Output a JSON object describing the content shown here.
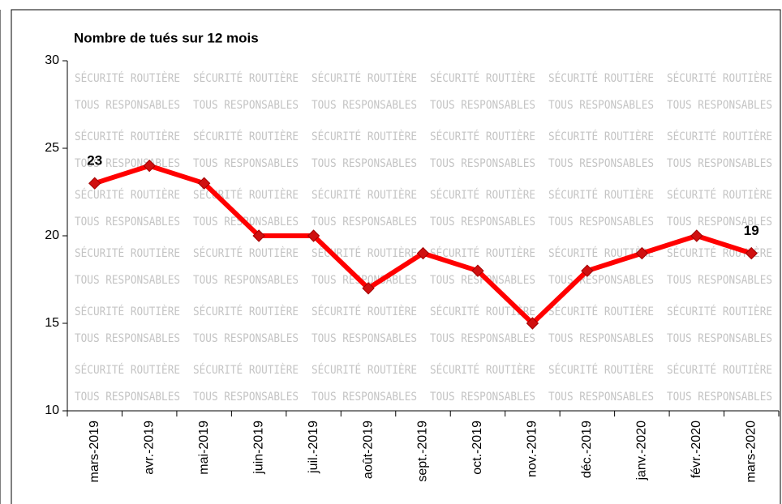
{
  "chart_data": {
    "type": "line",
    "title": "Nombre de tués sur 12 mois",
    "watermark": [
      "SÉCURITÉ ROUTIÈRE",
      "TOUS RESPONSABLES"
    ],
    "categories": [
      "mars-2019",
      "avr.-2019",
      "mai-2019",
      "juin-2019",
      "juil.-2019",
      "août-2019",
      "sept.-2019",
      "oct.-2019",
      "nov.-2019",
      "déc.-2019",
      "janv.-2020",
      "févr.-2020",
      "mars-2020"
    ],
    "series": [
      {
        "name": "Nombre de tués",
        "color": "#ff0000",
        "values": [
          23,
          24,
          23,
          20,
          20,
          17,
          19,
          18,
          15,
          18,
          19,
          20,
          19
        ]
      }
    ],
    "labeled_points": [
      0,
      12
    ],
    "ylim": [
      10,
      30
    ],
    "yticks": [
      10,
      15,
      20,
      25,
      30
    ],
    "grid": false
  }
}
